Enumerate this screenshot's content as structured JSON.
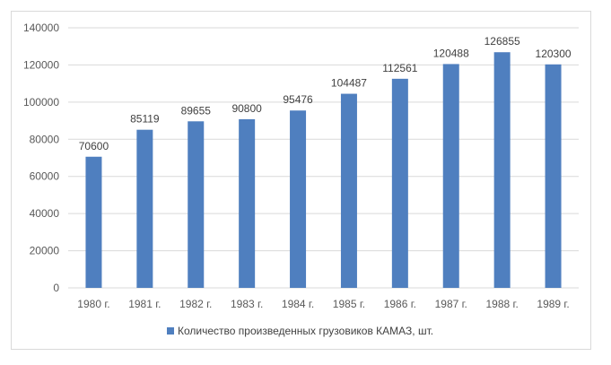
{
  "chart_data": {
    "type": "bar",
    "categories": [
      "1980 г.",
      "1981 г.",
      "1982 г.",
      "1983 г.",
      "1984 г.",
      "1985 г.",
      "1986 г.",
      "1987 г.",
      "1988 г.",
      "1989 г."
    ],
    "series": [
      {
        "name": "Количество произведенных грузовиков КАМАЗ, шт.",
        "values": [
          70600,
          85119,
          89655,
          90800,
          95476,
          104487,
          112561,
          120488,
          126855,
          120300
        ],
        "color": "#4f7fbf"
      }
    ],
    "ylim": [
      0,
      140000
    ],
    "yticks": [
      0,
      20000,
      40000,
      60000,
      80000,
      100000,
      120000,
      140000
    ],
    "grid": true,
    "legend_position": "bottom",
    "title": "",
    "xlabel": "",
    "ylabel": ""
  }
}
